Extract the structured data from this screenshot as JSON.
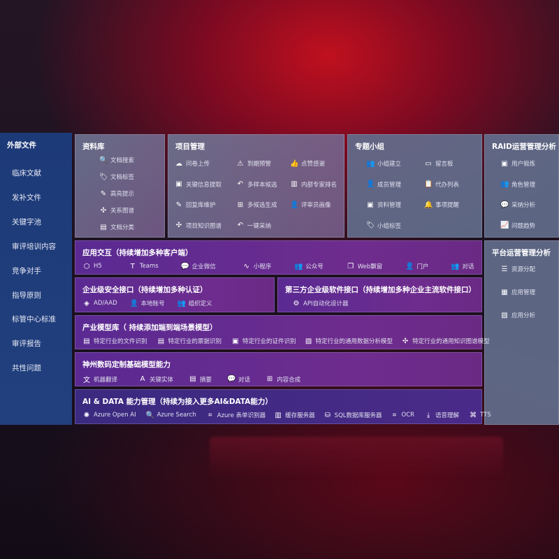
{
  "sidebar": {
    "title": "外部文件",
    "items": [
      "临床文献",
      "发补文件",
      "关键字池",
      "审评培训内容",
      "竞争对手",
      "指导原则",
      "标管中心标准",
      "审评报告",
      "共性问题"
    ]
  },
  "library": {
    "title": "资料库",
    "items": [
      {
        "label": "文档搜索",
        "icon": "doc-search-icon",
        "glyph": "🔍"
      },
      {
        "label": "文档标签",
        "icon": "tag-icon",
        "glyph": "🏷"
      },
      {
        "label": "高亮提示",
        "icon": "pen-icon",
        "glyph": "✎"
      },
      {
        "label": "关系图谱",
        "icon": "graph-icon",
        "glyph": "✣"
      },
      {
        "label": "文档分类",
        "icon": "doc-category-icon",
        "glyph": "▤"
      }
    ]
  },
  "project": {
    "title": "项目管理",
    "items": [
      {
        "label": "问卷上传",
        "icon": "cloud-upload-icon",
        "glyph": "☁"
      },
      {
        "label": "到期预警",
        "icon": "alarm-icon",
        "glyph": "⚠"
      },
      {
        "label": "点赞感谢",
        "icon": "thumbs-up-icon",
        "glyph": "👍"
      },
      {
        "label": "关键信息提取",
        "icon": "window-icon",
        "glyph": "▣"
      },
      {
        "label": "多样本候选",
        "icon": "reply-icon",
        "glyph": "↶"
      },
      {
        "label": "内部专家排名",
        "icon": "ranking-icon",
        "glyph": "▥"
      },
      {
        "label": "回复库维护",
        "icon": "edit-icon",
        "glyph": "✎"
      },
      {
        "label": "多候选生成",
        "icon": "puzzle-icon",
        "glyph": "⊞"
      },
      {
        "label": "评审员画像",
        "icon": "user-icon",
        "glyph": "👤"
      },
      {
        "label": "项目知识图谱",
        "icon": "graph-icon",
        "glyph": "✣"
      },
      {
        "label": "一键采纳",
        "icon": "reply-icon",
        "glyph": "↶"
      }
    ]
  },
  "group": {
    "title": "专题小组",
    "items": [
      {
        "label": "小组建立",
        "icon": "group-icon",
        "glyph": "👥"
      },
      {
        "label": "留言板",
        "icon": "bbs-icon",
        "glyph": "▭"
      },
      {
        "label": "成员管理",
        "icon": "user-add-icon",
        "glyph": "👤"
      },
      {
        "label": "代办列表",
        "icon": "clipboard-icon",
        "glyph": "📋"
      },
      {
        "label": "资料管理",
        "icon": "folder-icon",
        "glyph": "▣"
      },
      {
        "label": "事项提醒",
        "icon": "bell-icon",
        "glyph": "🔔"
      },
      {
        "label": "小组标签",
        "icon": "tag-icon",
        "glyph": "🏷"
      }
    ]
  },
  "raid": {
    "title": "RAID运营管理分析",
    "items": [
      {
        "label": "用户锻炼",
        "icon": "id-card-icon",
        "glyph": "▣"
      },
      {
        "label": "角色管理",
        "icon": "users-icon",
        "glyph": "👥"
      },
      {
        "label": "采纳分析",
        "icon": "qa-icon",
        "glyph": "💬"
      },
      {
        "label": "问题趋势",
        "icon": "trend-icon",
        "glyph": "📈"
      }
    ]
  },
  "platform": {
    "title": "平台运营管理分析",
    "items": [
      {
        "label": "资源分配",
        "icon": "checklist-icon",
        "glyph": "☰"
      },
      {
        "label": "应用管理",
        "icon": "apps-icon",
        "glyph": "▦"
      },
      {
        "label": "应用分析",
        "icon": "analysis-icon",
        "glyph": "▧"
      }
    ]
  },
  "app": {
    "title": "应用交互（持续增加多种客户端）",
    "items": [
      {
        "label": "H5",
        "icon": "html5-icon",
        "glyph": "⬡"
      },
      {
        "label": "Teams",
        "icon": "teams-icon",
        "glyph": "T"
      },
      {
        "label": "企业微信",
        "icon": "wecom-icon",
        "glyph": "💬"
      },
      {
        "label": "小程序",
        "icon": "miniprogram-icon",
        "glyph": "∿"
      },
      {
        "label": "公众号",
        "icon": "official-account-icon",
        "glyph": "👥"
      },
      {
        "label": "Web飘窗",
        "icon": "window-icon",
        "glyph": "❐"
      },
      {
        "label": "门户",
        "icon": "portal-icon",
        "glyph": "👤"
      },
      {
        "label": "对话",
        "icon": "chat-users-icon",
        "glyph": "👥"
      }
    ]
  },
  "security": {
    "title": "企业级安全接口（持续增加多种认证）",
    "items": [
      {
        "label": "AD/AAD",
        "icon": "ad-icon",
        "glyph": "◈"
      },
      {
        "label": "本地账号",
        "icon": "local-account-icon",
        "glyph": "👤"
      },
      {
        "label": "组织定义",
        "icon": "org-icon",
        "glyph": "👥"
      }
    ]
  },
  "thirdparty": {
    "title": "第三方企业级软件接口（持续增加多种企业主流软件接口）",
    "items": [
      {
        "label": "API自动化设计器",
        "icon": "gear-icon",
        "glyph": "⚙"
      }
    ]
  },
  "industry": {
    "title": "产业模型库（ 持续添加端到端场景模型）",
    "items": [
      {
        "label": "特定行业的文件识别",
        "icon": "file-icon",
        "glyph": "▤"
      },
      {
        "label": "特定行业的票据识别",
        "icon": "receipt-icon",
        "glyph": "▤"
      },
      {
        "label": "特定行业的证件识别",
        "icon": "id-card-icon",
        "glyph": "▣"
      },
      {
        "label": "特定行业的通用数据分析模型",
        "icon": "chart-icon",
        "glyph": "▧"
      },
      {
        "label": "特定行业的通用知识图谱模型",
        "icon": "graph-icon",
        "glyph": "✣"
      }
    ]
  },
  "base": {
    "title": "神州数码定制基础模型能力",
    "items": [
      {
        "label": "机器翻译",
        "icon": "translate-icon",
        "glyph": "文"
      },
      {
        "label": "关键实体",
        "icon": "entity-icon",
        "glyph": "A"
      },
      {
        "label": "摘要",
        "icon": "summary-icon",
        "glyph": "▤"
      },
      {
        "label": "对话",
        "icon": "chat-icon",
        "glyph": "💬"
      },
      {
        "label": "内容合成",
        "icon": "puzzle-icon",
        "glyph": "⊞"
      }
    ]
  },
  "aidata": {
    "title": "AI & DATA 能力管理（持续为接入更多AI&DATA能力）",
    "items": [
      {
        "label": "Azure Open AI",
        "icon": "openai-icon",
        "glyph": "✺"
      },
      {
        "label": "Azure Search",
        "icon": "search-doc-icon",
        "glyph": "🔍"
      },
      {
        "label": "Azure 表单识别器",
        "icon": "form-scan-icon",
        "glyph": "⌗"
      },
      {
        "label": "缓存服务器",
        "icon": "cache-server-icon",
        "glyph": "▥"
      },
      {
        "label": "SQL数据库服务器",
        "icon": "database-icon",
        "glyph": "⛁"
      },
      {
        "label": "OCR",
        "icon": "ocr-icon",
        "glyph": "⌗"
      },
      {
        "label": "语音理解",
        "icon": "speech-icon",
        "glyph": "⤓"
      },
      {
        "label": "TTS",
        "icon": "tts-icon",
        "glyph": "⌘"
      }
    ]
  }
}
